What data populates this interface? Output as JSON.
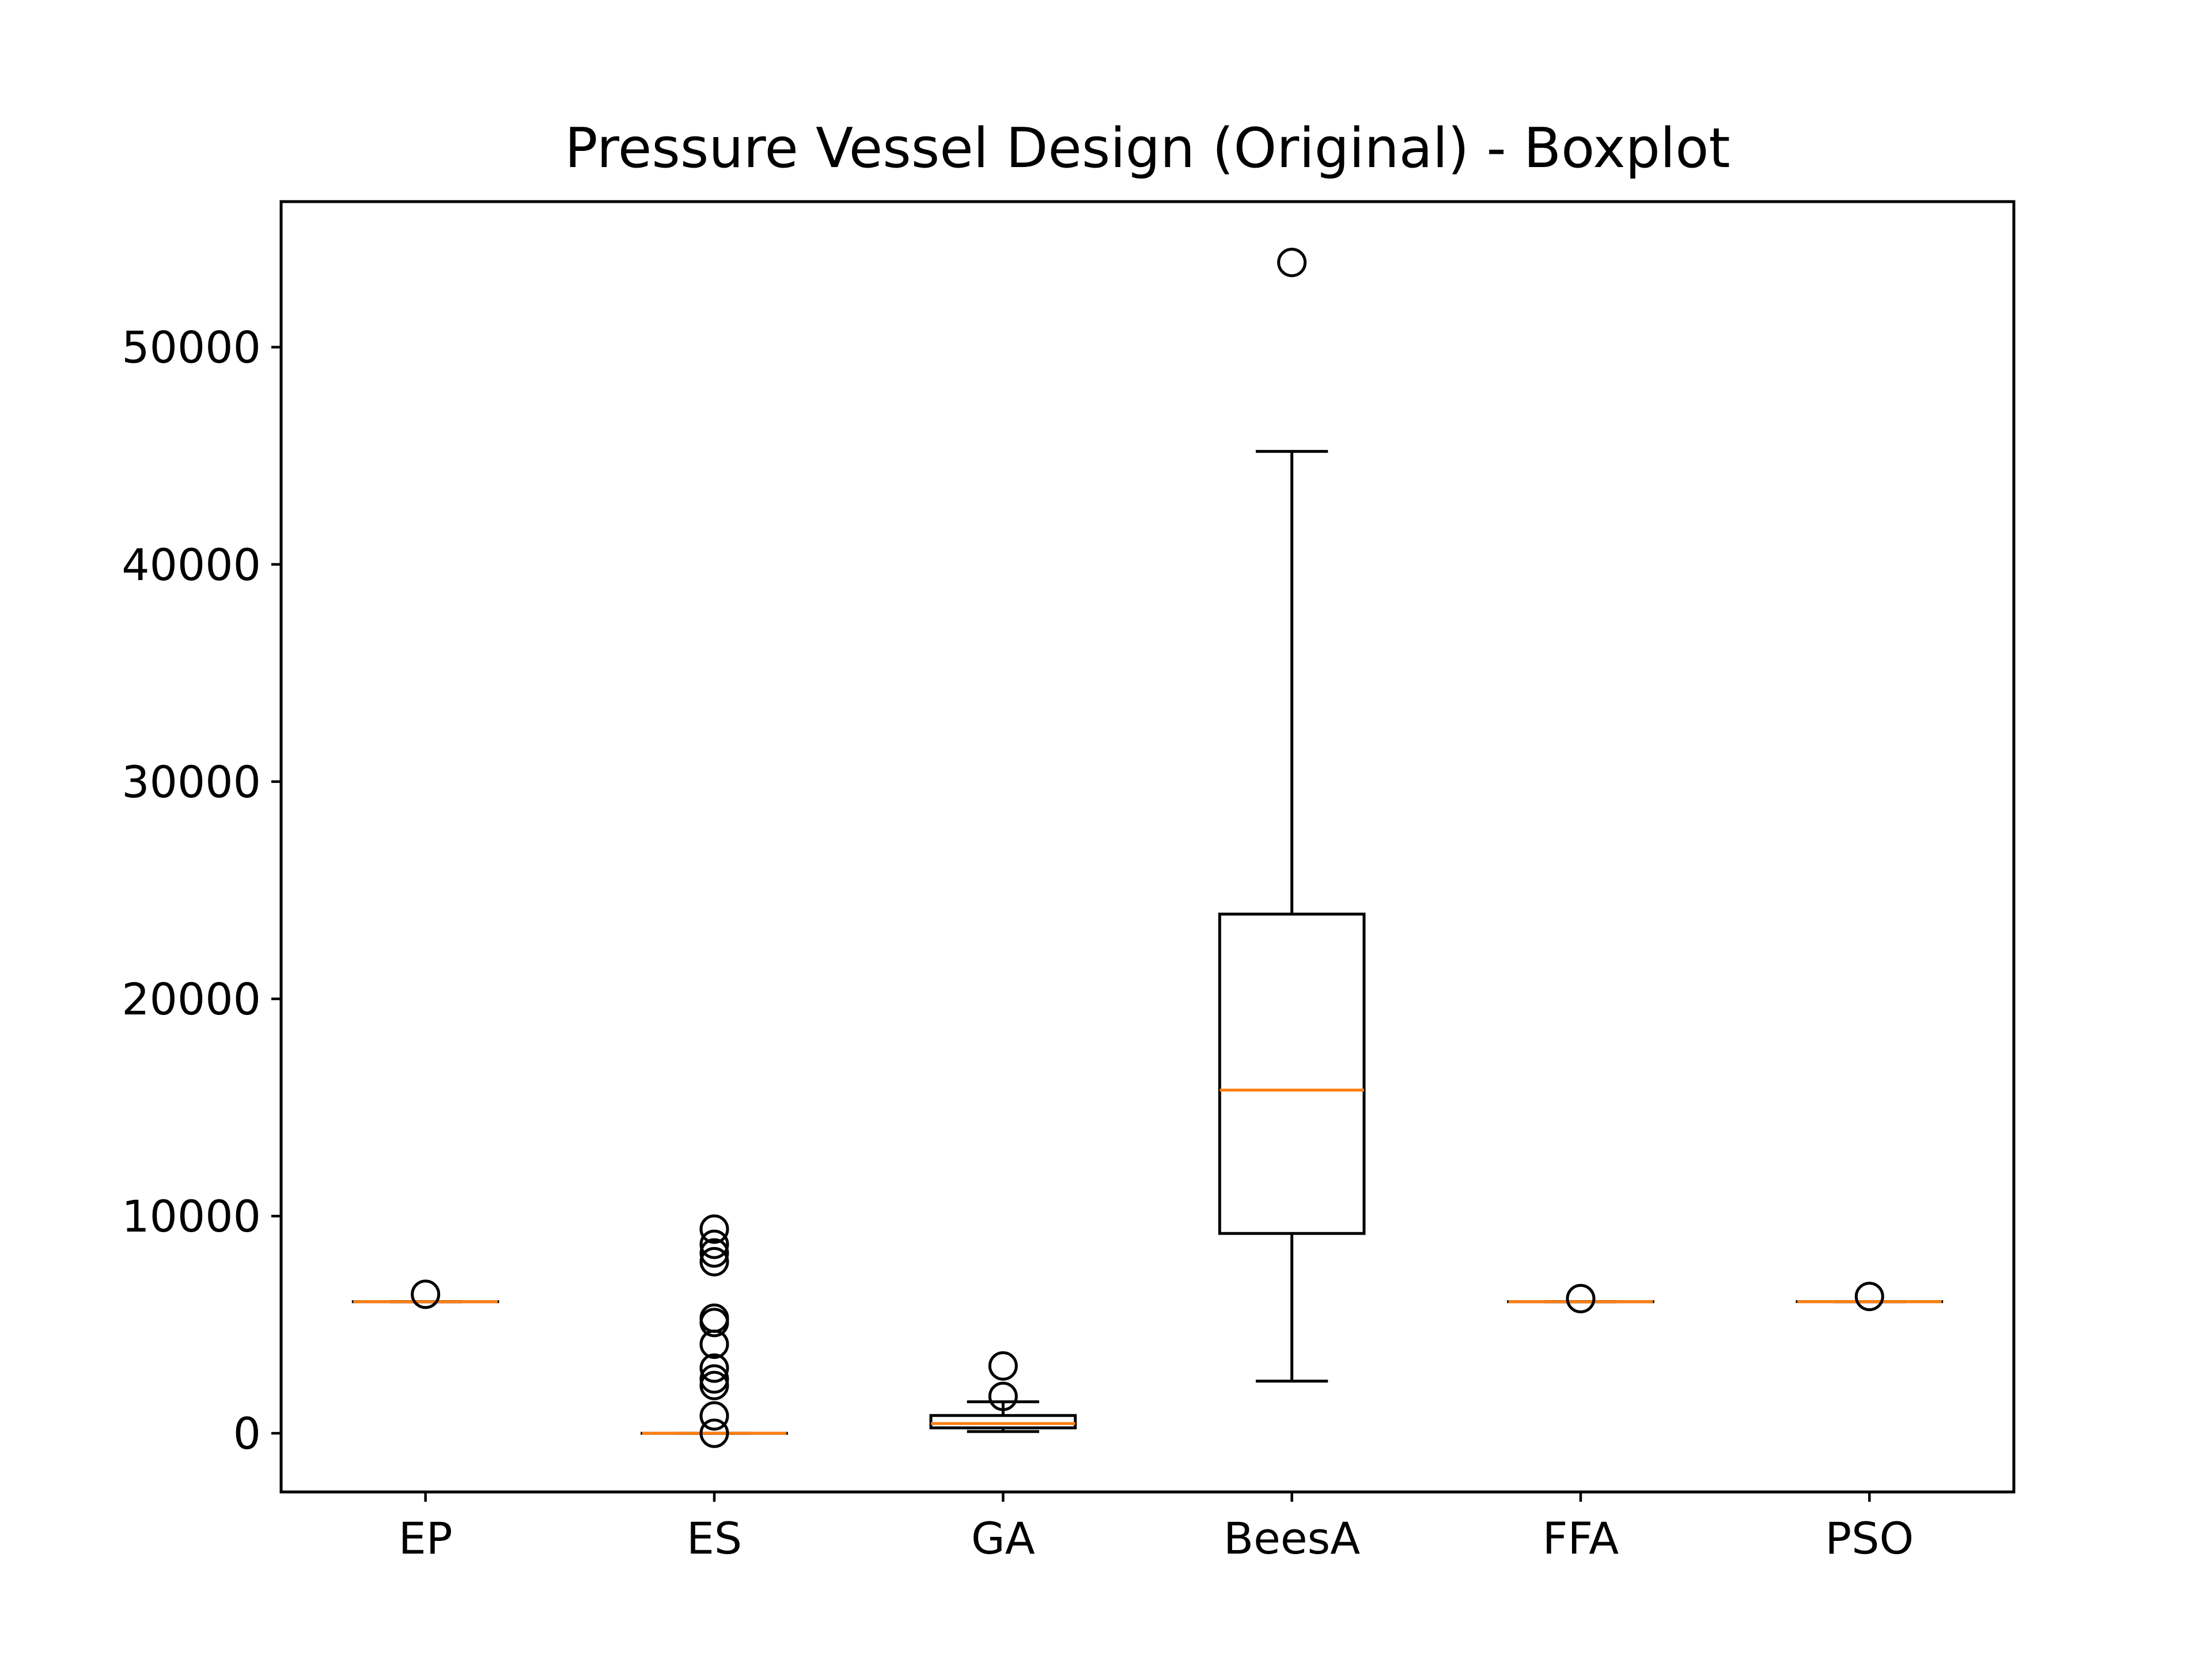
{
  "chart_data": {
    "type": "boxplot",
    "title": "Pressure Vessel Design (Original) - Boxplot",
    "xlabel": "",
    "ylabel": "",
    "ylim": [
      -2700,
      56700
    ],
    "yticks": [
      0,
      10000,
      20000,
      30000,
      40000,
      50000
    ],
    "ytick_labels": [
      "0",
      "10000",
      "20000",
      "30000",
      "40000",
      "50000"
    ],
    "grid": false,
    "categories": [
      "EP",
      "ES",
      "GA",
      "BeesA",
      "FFA",
      "PSO"
    ],
    "series": [
      {
        "category": "EP",
        "whislo": 6059,
        "q1": 6059,
        "med": 6059,
        "q3": 6059,
        "whishi": 6059,
        "fliers": [
          6400
        ]
      },
      {
        "category": "ES",
        "whislo": 0,
        "q1": 0,
        "med": 0,
        "q3": 0,
        "whishi": 0,
        "fliers": [
          0,
          800,
          2200,
          2500,
          3000,
          4100,
          5100,
          5300,
          7900,
          8300,
          8700,
          9400
        ]
      },
      {
        "category": "GA",
        "whislo": 80,
        "q1": 250,
        "med": 450,
        "q3": 820,
        "whishi": 1450,
        "fliers": [
          1700,
          3100
        ]
      },
      {
        "category": "BeesA",
        "whislo": 2400,
        "q1": 9200,
        "med": 15800,
        "q3": 23900,
        "whishi": 45200,
        "fliers": [
          53900
        ]
      },
      {
        "category": "FFA",
        "whislo": 6059,
        "q1": 6059,
        "med": 6059,
        "q3": 6059,
        "whishi": 6059,
        "fliers": [
          6200
        ]
      },
      {
        "category": "PSO",
        "whislo": 6061,
        "q1": 6061,
        "med": 6061,
        "q3": 6061,
        "whishi": 6061,
        "fliers": [
          6300
        ]
      }
    ],
    "colors": {
      "median": "#ff7f0e",
      "box": "#000000",
      "flier": "#000000"
    }
  }
}
